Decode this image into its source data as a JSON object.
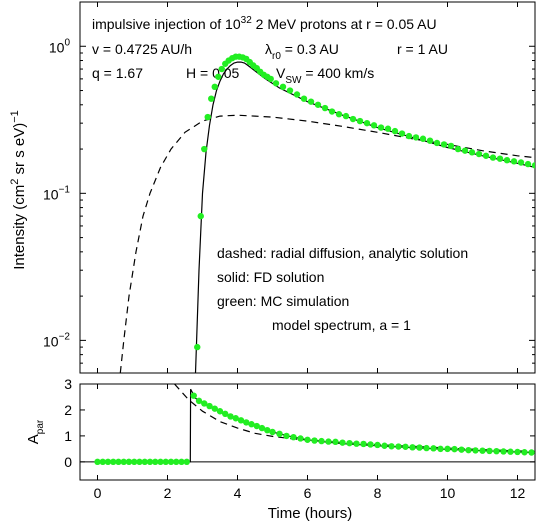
{
  "chart_data": [
    {
      "type": "line",
      "panel": "top",
      "annotations": {
        "line1": {
          "pre": "impulsive injection of 10",
          "sup": "32",
          "post": " 2 MeV protons at r = 0.05 AU"
        },
        "line2": {
          "v": "v  = 0.4725 AU/h",
          "lam": "λ",
          "lam_sub": "r0",
          "lam_rest": " = 0.3 AU",
          "r": "r  = 1 AU"
        },
        "line3": {
          "q": "q = 1.67",
          "H": "H = 0.05",
          "V": "V",
          "V_sub": "SW",
          "V_rest": " = 400 km/s"
        }
      },
      "ylabel": {
        "pre": "Intensity (cm",
        "sup": "2",
        "mid": " sr s eV)",
        "sup2": "−1"
      },
      "y_scale": "log",
      "ylim": [
        0.006,
        2.0
      ],
      "xlim": [
        -0.5,
        12.5
      ],
      "yticks": [
        {
          "value": 0.01,
          "base": "10",
          "exp": "−2"
        },
        {
          "value": 0.1,
          "base": "10",
          "exp": "−1"
        },
        {
          "value": 1,
          "base": "10",
          "exp": "0"
        }
      ],
      "legend_text": [
        "dashed: radial diffusion, analytic solution",
        "solid: FD solution",
        "green: MC simulation",
        "model spectrum, a = 1"
      ],
      "series": [
        {
          "style": "dashed",
          "color": "#000000",
          "x": [
            0.65,
            0.75,
            0.9,
            1.1,
            1.3,
            1.5,
            1.8,
            2.1,
            2.5,
            3.0,
            3.5,
            4.0,
            4.5,
            5,
            6,
            7,
            8,
            9,
            10,
            11,
            12,
            12.5
          ],
          "y": [
            0.006,
            0.01,
            0.02,
            0.04,
            0.07,
            0.1,
            0.15,
            0.2,
            0.26,
            0.31,
            0.335,
            0.34,
            0.335,
            0.33,
            0.31,
            0.285,
            0.26,
            0.235,
            0.215,
            0.195,
            0.18,
            0.175
          ]
        },
        {
          "style": "solid",
          "color": "#000000",
          "x": [
            2.8,
            2.9,
            3.0,
            3.1,
            3.2,
            3.3,
            3.4,
            3.5,
            3.6,
            3.7,
            3.8,
            3.9,
            4.0,
            4.1,
            4.2,
            4.3,
            4.5,
            4.8,
            5.2,
            6,
            7,
            8,
            9,
            10,
            11,
            12,
            12.5
          ],
          "y": [
            0.006,
            0.03,
            0.1,
            0.19,
            0.29,
            0.4,
            0.5,
            0.58,
            0.65,
            0.7,
            0.74,
            0.77,
            0.78,
            0.78,
            0.77,
            0.74,
            0.68,
            0.6,
            0.52,
            0.42,
            0.34,
            0.28,
            0.24,
            0.205,
            0.18,
            0.16,
            0.15
          ]
        },
        {
          "style": "markers",
          "color": "#22ee22",
          "x": [
            2.85,
            2.95,
            3.05,
            3.15,
            3.25,
            3.35,
            3.45,
            3.55,
            3.65,
            3.75,
            3.85,
            3.95,
            4.05,
            4.15,
            4.25,
            4.35,
            4.45,
            4.55,
            4.65,
            4.75,
            4.85,
            4.95,
            5.1,
            5.3,
            5.5,
            5.7,
            5.9,
            6.1,
            6.3,
            6.5,
            6.7,
            6.9,
            7.1,
            7.3,
            7.5,
            7.7,
            7.9,
            8.1,
            8.3,
            8.5,
            8.7,
            8.9,
            9.1,
            9.3,
            9.5,
            9.7,
            9.9,
            10.1,
            10.3,
            10.5,
            10.7,
            10.9,
            11.1,
            11.3,
            11.5,
            11.7,
            11.9,
            12.1,
            12.3,
            12.5
          ],
          "y": [
            0.009,
            0.07,
            0.2,
            0.33,
            0.44,
            0.53,
            0.62,
            0.7,
            0.76,
            0.8,
            0.83,
            0.85,
            0.85,
            0.84,
            0.82,
            0.78,
            0.74,
            0.71,
            0.67,
            0.64,
            0.62,
            0.6,
            0.56,
            0.53,
            0.5,
            0.47,
            0.44,
            0.42,
            0.4,
            0.38,
            0.36,
            0.345,
            0.335,
            0.32,
            0.31,
            0.3,
            0.29,
            0.28,
            0.275,
            0.265,
            0.255,
            0.245,
            0.24,
            0.235,
            0.228,
            0.22,
            0.215,
            0.21,
            0.2,
            0.195,
            0.19,
            0.185,
            0.18,
            0.175,
            0.172,
            0.168,
            0.165,
            0.162,
            0.158,
            0.155
          ]
        }
      ]
    },
    {
      "type": "line",
      "panel": "bottom",
      "xlabel": "Time  (hours)",
      "ylabel": {
        "base": "A",
        "sub": "par"
      },
      "ylim": [
        -0.7,
        3.0
      ],
      "xlim": [
        -0.5,
        12.5
      ],
      "yticks": [
        0,
        1,
        2,
        3
      ],
      "xticks": [
        0,
        2,
        4,
        6,
        8,
        10,
        12
      ],
      "zero_line": true,
      "series": [
        {
          "style": "dashed",
          "color": "#000000",
          "x": [
            2.2,
            2.6,
            3.0,
            3.5,
            4.0,
            4.5,
            5.0,
            5.5,
            6.0,
            6.5,
            7,
            8,
            9,
            10,
            11,
            12,
            12.5
          ],
          "y": [
            3.0,
            2.4,
            1.95,
            1.55,
            1.3,
            1.1,
            0.98,
            0.9,
            0.84,
            0.79,
            0.74,
            0.66,
            0.6,
            0.53,
            0.47,
            0.42,
            0.4
          ]
        },
        {
          "style": "solid",
          "color": "#000000",
          "x": [
            0,
            2.65,
            2.66,
            2.8,
            3.0,
            3.3,
            3.6,
            4.0,
            4.5,
            5.0,
            5.5,
            6.0,
            6.5,
            7,
            8,
            9,
            10,
            11,
            12,
            12.5
          ],
          "y": [
            0,
            0,
            2.8,
            2.45,
            2.3,
            2.05,
            1.85,
            1.62,
            1.38,
            1.15,
            0.98,
            0.85,
            0.77,
            0.7,
            0.62,
            0.55,
            0.48,
            0.43,
            0.38,
            0.36
          ]
        },
        {
          "style": "markers",
          "color": "#22ee22",
          "x": [
            0,
            0.15,
            0.3,
            0.45,
            0.6,
            0.75,
            0.9,
            1.05,
            1.2,
            1.35,
            1.5,
            1.65,
            1.8,
            1.95,
            2.1,
            2.25,
            2.4,
            2.55,
            2.75,
            2.9,
            3.05,
            3.2,
            3.35,
            3.5,
            3.65,
            3.8,
            3.95,
            4.1,
            4.25,
            4.4,
            4.55,
            4.7,
            4.85,
            5.0,
            5.2,
            5.4,
            5.6,
            5.8,
            6.0,
            6.2,
            6.4,
            6.6,
            6.8,
            7.0,
            7.2,
            7.4,
            7.6,
            7.8,
            8.0,
            8.2,
            8.4,
            8.6,
            8.8,
            9.0,
            9.2,
            9.4,
            9.6,
            9.8,
            10.0,
            10.2,
            10.4,
            10.6,
            10.8,
            11.0,
            11.2,
            11.4,
            11.6,
            11.8,
            12.0,
            12.2,
            12.4
          ],
          "y": [
            0,
            0,
            0,
            0,
            0,
            0,
            0,
            0,
            0,
            0,
            0,
            0,
            0,
            0,
            0,
            0,
            0,
            0,
            2.55,
            2.35,
            2.25,
            2.15,
            2.05,
            1.95,
            1.85,
            1.75,
            1.68,
            1.6,
            1.52,
            1.45,
            1.38,
            1.3,
            1.22,
            1.15,
            1.08,
            1.0,
            0.95,
            0.9,
            0.85,
            0.82,
            0.8,
            0.78,
            0.77,
            0.74,
            0.72,
            0.7,
            0.69,
            0.67,
            0.65,
            0.62,
            0.6,
            0.59,
            0.58,
            0.56,
            0.55,
            0.53,
            0.52,
            0.5,
            0.5,
            0.49,
            0.47,
            0.45,
            0.44,
            0.43,
            0.42,
            0.41,
            0.4,
            0.39,
            0.38,
            0.37,
            0.36
          ]
        }
      ]
    }
  ]
}
